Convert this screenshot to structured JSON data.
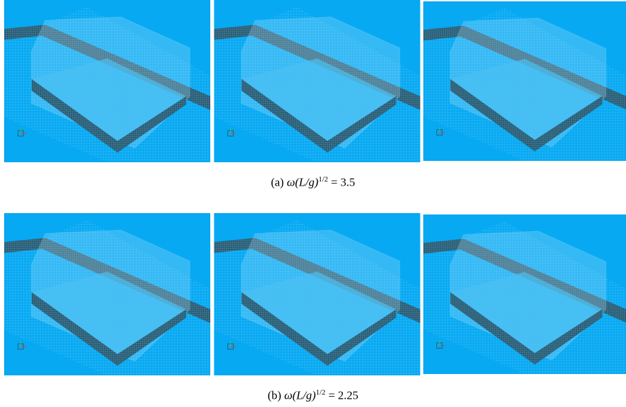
{
  "panels": [
    {
      "caption": {
        "label": "(a)",
        "expr": "ω(L/g)",
        "exponent": "1/2",
        "value": "= 3.5"
      }
    },
    {
      "caption": {
        "label": "(b)",
        "expr": "ω(L/g)",
        "exponent": "1/2",
        "value": "= 2.25"
      }
    }
  ]
}
